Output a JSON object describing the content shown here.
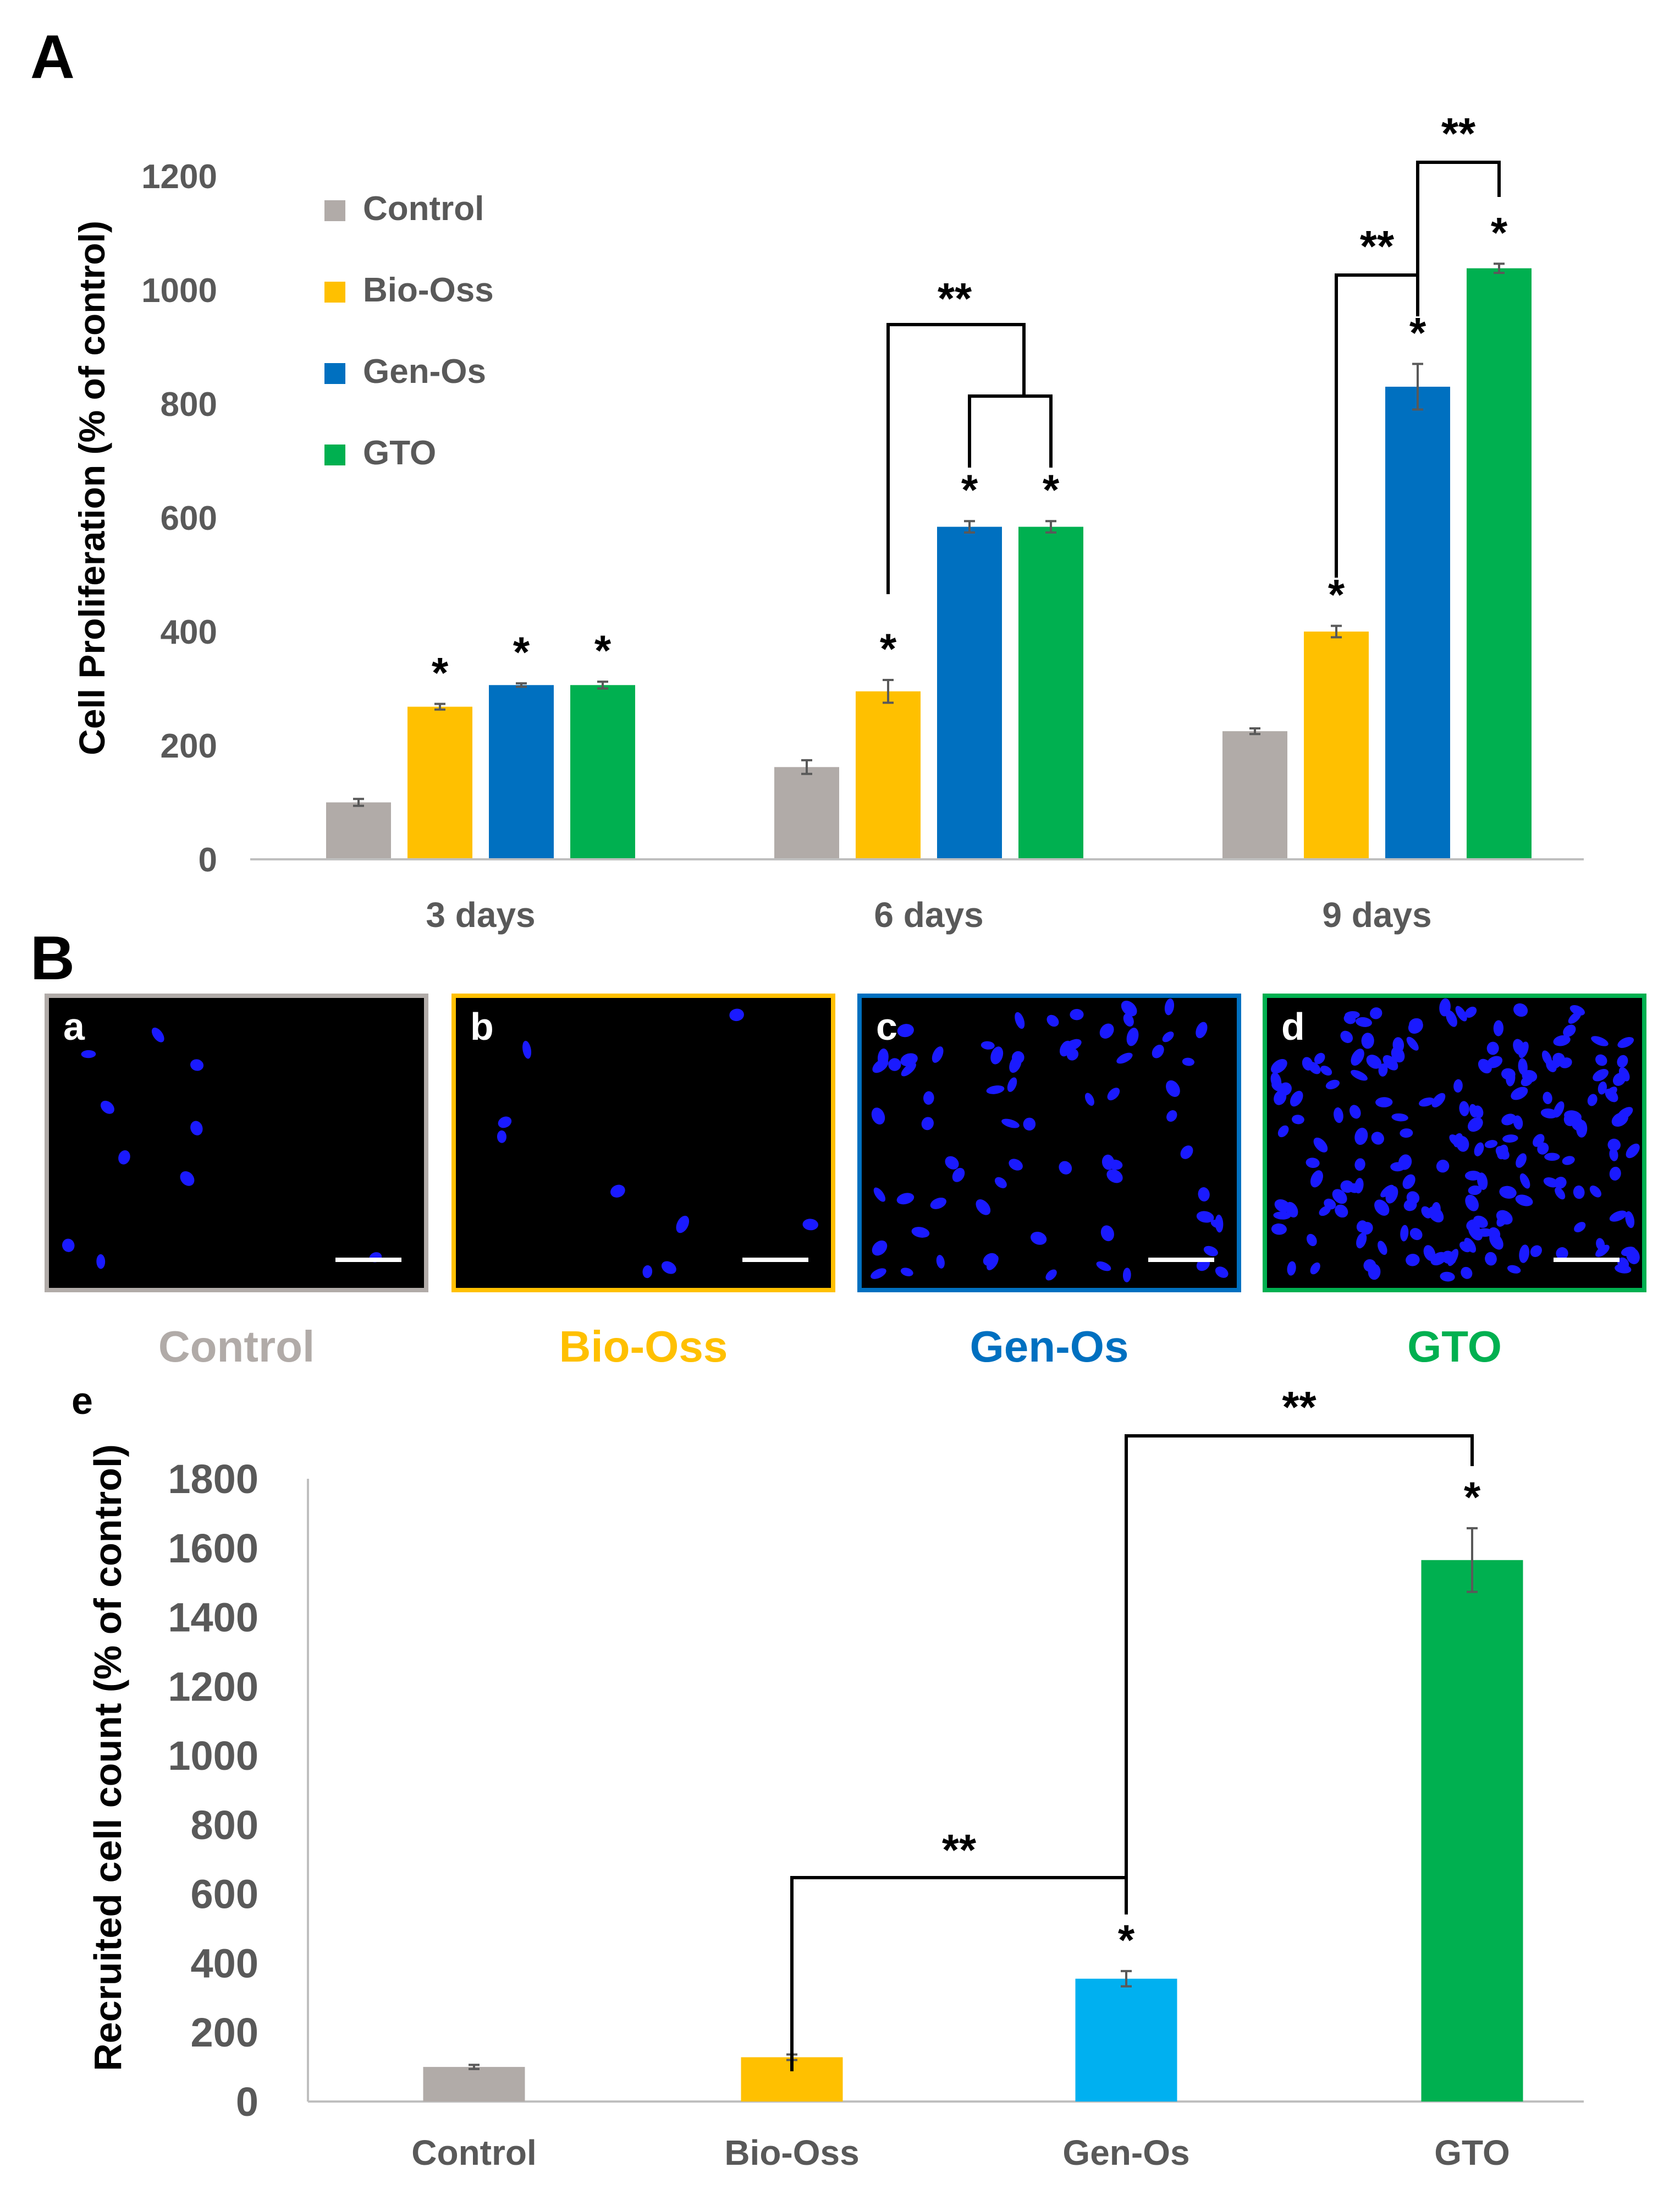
{
  "panel_labels": {
    "A": "A",
    "B": "B",
    "e": "e"
  },
  "colors": {
    "control": "#B1ABA8",
    "bio_oss": "#FFC000",
    "gen_os": "#0070C0",
    "gen_os_light": "#00B0F0",
    "gto": "#00B050",
    "axis_text": "#595959",
    "nucleus": "#1a1aff"
  },
  "chart_data": [
    {
      "id": "proliferation",
      "type": "bar",
      "title": "",
      "xlabel": "",
      "ylabel": "Cell Proliferation (% of control)",
      "ylim": [
        0,
        1200
      ],
      "yticks": [
        0,
        200,
        400,
        600,
        800,
        1000,
        1200
      ],
      "categories": [
        "3 days",
        "6 days",
        "9 days"
      ],
      "legend": {
        "placement": "top-left"
      },
      "series": [
        {
          "name": "Control",
          "color_key": "control",
          "values": [
            100,
            162,
            225
          ],
          "errors": [
            6,
            12,
            5
          ],
          "stars": [
            "",
            "",
            ""
          ]
        },
        {
          "name": "Bio-Oss",
          "color_key": "bio_oss",
          "values": [
            268,
            295,
            400
          ],
          "errors": [
            5,
            20,
            10
          ],
          "stars": [
            "*",
            "*",
            "*"
          ]
        },
        {
          "name": "Gen-Os",
          "color_key": "gen_os",
          "values": [
            306,
            584,
            830
          ],
          "errors": [
            3,
            10,
            40
          ],
          "stars": [
            "*",
            "*",
            "*"
          ]
        },
        {
          "name": "GTO",
          "color_key": "gto",
          "values": [
            306,
            584,
            1038
          ],
          "errors": [
            6,
            10,
            8
          ],
          "stars": [
            "*",
            "*",
            "*"
          ]
        }
      ],
      "significance_label": "**"
    },
    {
      "id": "recruitment",
      "type": "bar",
      "title": "",
      "xlabel": "",
      "ylabel": "Recruited cell count (% of control)",
      "ylim": [
        0,
        1800
      ],
      "yticks": [
        0,
        200,
        400,
        600,
        800,
        1000,
        1200,
        1400,
        1600,
        1800
      ],
      "categories": [
        "Control",
        "Bio-Oss",
        "Gen-Os",
        "GTO"
      ],
      "color_keys": [
        "control",
        "bio_oss",
        "gen_os_light",
        "gto"
      ],
      "values": [
        100,
        128,
        355,
        1565
      ],
      "errors": [
        6,
        8,
        22,
        92
      ],
      "stars": [
        "",
        "",
        "*",
        "*"
      ],
      "significance_label": "**"
    }
  ],
  "micrographs": {
    "panels": [
      {
        "letter": "a",
        "caption": "Control",
        "color_key": "control"
      },
      {
        "letter": "b",
        "caption": "Bio-Oss",
        "color_key": "bio_oss"
      },
      {
        "letter": "c",
        "caption": "Gen-Os",
        "color_key": "gen_os"
      },
      {
        "letter": "d",
        "caption": "GTO",
        "color_key": "gto"
      }
    ]
  }
}
